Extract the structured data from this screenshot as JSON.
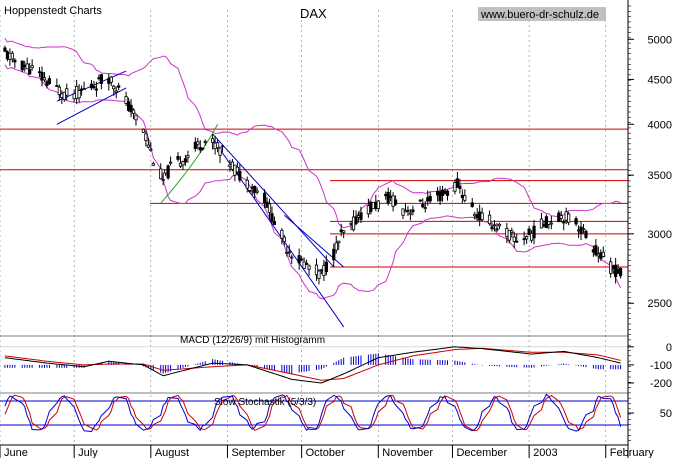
{
  "header": {
    "publisher": "Hoppenstedt Charts",
    "title": "DAX",
    "website": "www.buero-dr-schulz.de"
  },
  "colors": {
    "candle": "#000000",
    "bollinger": "#cc33cc",
    "support_resistance": "#cc0000",
    "trendline": "#0000cc",
    "green_arc": "#22aa22",
    "macd_line": "#000000",
    "macd_signal": "#cc0000",
    "histogram": "#0000cc",
    "stoch_k": "#0000cc",
    "stoch_d": "#cc0000",
    "stoch_band": "#0000cc",
    "website_bg": "#c0c0c0",
    "grid": "#808080"
  },
  "chart_data": [
    {
      "type": "candlestick",
      "title": "DAX",
      "scale": "log",
      "x_tick_labels": [
        "June",
        "July",
        "August",
        "September",
        "October",
        "November",
        "December",
        "2003",
        "February"
      ],
      "y_tick_labels": [
        "5000",
        "4500",
        "4000",
        "3500",
        "3000",
        "2500"
      ],
      "y_ticks": [
        5000,
        4500,
        4000,
        3500,
        3000,
        2500
      ],
      "ylim": [
        2300,
        5400
      ],
      "grid": true,
      "close_path": [
        [
          "2002-06-03",
          4820
        ],
        [
          "2002-06-07",
          4720
        ],
        [
          "2002-06-14",
          4620
        ],
        [
          "2002-06-21",
          4450
        ],
        [
          "2002-06-28",
          4320
        ],
        [
          "2002-07-03",
          4350
        ],
        [
          "2002-07-10",
          4450
        ],
        [
          "2002-07-15",
          4530
        ],
        [
          "2002-07-19",
          4380
        ],
        [
          "2002-07-24",
          4150
        ],
        [
          "2002-07-29",
          3950
        ],
        [
          "2002-08-02",
          3650
        ],
        [
          "2002-08-06",
          3450
        ],
        [
          "2002-08-09",
          3570
        ],
        [
          "2002-08-14",
          3650
        ],
        [
          "2002-08-20",
          3780
        ],
        [
          "2002-08-23",
          3830
        ],
        [
          "2002-08-28",
          3780
        ],
        [
          "2002-09-02",
          3620
        ],
        [
          "2002-09-06",
          3500
        ],
        [
          "2002-09-11",
          3400
        ],
        [
          "2002-09-16",
          3300
        ],
        [
          "2002-09-20",
          3100
        ],
        [
          "2002-09-25",
          2900
        ],
        [
          "2002-09-30",
          2800
        ],
        [
          "2002-10-04",
          2750
        ],
        [
          "2002-10-09",
          2700
        ],
        [
          "2002-10-14",
          2850
        ],
        [
          "2002-10-17",
          2980
        ],
        [
          "2002-10-21",
          3050
        ],
        [
          "2002-10-24",
          3150
        ],
        [
          "2002-10-28",
          3200
        ],
        [
          "2002-11-01",
          3250
        ],
        [
          "2002-11-06",
          3300
        ],
        [
          "2002-11-11",
          3200
        ],
        [
          "2002-11-15",
          3200
        ],
        [
          "2002-11-20",
          3250
        ],
        [
          "2002-11-25",
          3300
        ],
        [
          "2002-11-29",
          3350
        ],
        [
          "2002-12-03",
          3420
        ],
        [
          "2002-12-06",
          3300
        ],
        [
          "2002-12-11",
          3150
        ],
        [
          "2002-12-16",
          3100
        ],
        [
          "2002-12-20",
          3050
        ],
        [
          "2002-12-27",
          2950
        ],
        [
          "2003-01-02",
          3000
        ],
        [
          "2003-01-08",
          3100
        ],
        [
          "2003-01-14",
          3150
        ],
        [
          "2003-01-20",
          3100
        ],
        [
          "2003-01-24",
          2980
        ],
        [
          "2003-01-29",
          2850
        ],
        [
          "2003-02-03",
          2750
        ],
        [
          "2003-02-07",
          2700
        ]
      ],
      "horizontal_levels": [
        3950,
        3550,
        3450,
        3250,
        3100,
        3000,
        2750
      ],
      "trendlines": [
        {
          "from": [
            "2002-06-24",
            4000
          ],
          "to": [
            "2002-07-22",
            4400
          ]
        },
        {
          "from": [
            "2002-06-24",
            4250
          ],
          "to": [
            "2002-07-22",
            4600
          ]
        },
        {
          "from": [
            "2002-08-26",
            3900
          ],
          "to": [
            "2002-10-14",
            2750
          ]
        },
        {
          "from": [
            "2002-08-26",
            3850
          ],
          "to": [
            "2002-10-18",
            2350
          ]
        },
        {
          "from": [
            "2002-09-24",
            3150
          ],
          "to": [
            "2002-10-18",
            2750
          ]
        }
      ]
    },
    {
      "type": "line",
      "title": "MACD (12/26/9) mit Histogramm",
      "y_tick_labels": [
        "0",
        "-100",
        "-200"
      ],
      "y_ticks": [
        0,
        -100,
        -200
      ],
      "ylim": [
        -250,
        60
      ],
      "macd_path": [
        [
          "2002-06-03",
          -60
        ],
        [
          "2002-06-20",
          -90
        ],
        [
          "2002-07-05",
          -110
        ],
        [
          "2002-07-15",
          -80
        ],
        [
          "2002-07-29",
          -100
        ],
        [
          "2002-08-06",
          -160
        ],
        [
          "2002-08-26",
          -90
        ],
        [
          "2002-09-09",
          -100
        ],
        [
          "2002-09-27",
          -180
        ],
        [
          "2002-10-09",
          -200
        ],
        [
          "2002-10-18",
          -150
        ],
        [
          "2002-11-01",
          -60
        ],
        [
          "2002-11-15",
          -30
        ],
        [
          "2002-12-02",
          0
        ],
        [
          "2002-12-13",
          -10
        ],
        [
          "2003-01-02",
          -40
        ],
        [
          "2003-01-15",
          -25
        ],
        [
          "2003-01-29",
          -60
        ],
        [
          "2003-02-07",
          -90
        ]
      ],
      "signal_path": [
        [
          "2002-06-03",
          -50
        ],
        [
          "2002-06-20",
          -80
        ],
        [
          "2002-07-05",
          -100
        ],
        [
          "2002-07-15",
          -95
        ],
        [
          "2002-07-29",
          -95
        ],
        [
          "2002-08-06",
          -130
        ],
        [
          "2002-08-26",
          -110
        ],
        [
          "2002-09-09",
          -100
        ],
        [
          "2002-09-27",
          -150
        ],
        [
          "2002-10-09",
          -185
        ],
        [
          "2002-10-18",
          -175
        ],
        [
          "2002-11-01",
          -100
        ],
        [
          "2002-11-15",
          -50
        ],
        [
          "2002-12-02",
          -15
        ],
        [
          "2002-12-13",
          -8
        ],
        [
          "2003-01-02",
          -30
        ],
        [
          "2003-01-15",
          -30
        ],
        [
          "2003-01-29",
          -45
        ],
        [
          "2003-02-07",
          -75
        ]
      ]
    },
    {
      "type": "line",
      "title": "Slow Stochastik (5/3/3)",
      "y_tick_labels": [
        "50"
      ],
      "y_ticks": [
        50
      ],
      "ylim": [
        0,
        100
      ],
      "bands": [
        80,
        20
      ]
    }
  ]
}
